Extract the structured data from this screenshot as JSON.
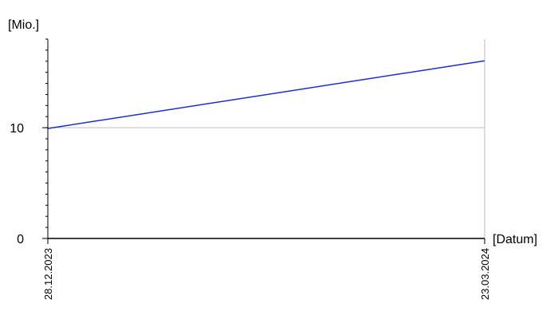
{
  "chart_data": {
    "type": "line",
    "y_label": "[Mio.]",
    "x_label": "[Datum]",
    "categories": [
      "28.12.2023",
      "23.03.2024"
    ],
    "series": [
      {
        "color": "#1a2fd0",
        "values": [
          9.93,
          16.04
        ]
      }
    ],
    "ylim": [
      0,
      18
    ],
    "yticks": [
      0,
      10
    ],
    "grid": true
  }
}
